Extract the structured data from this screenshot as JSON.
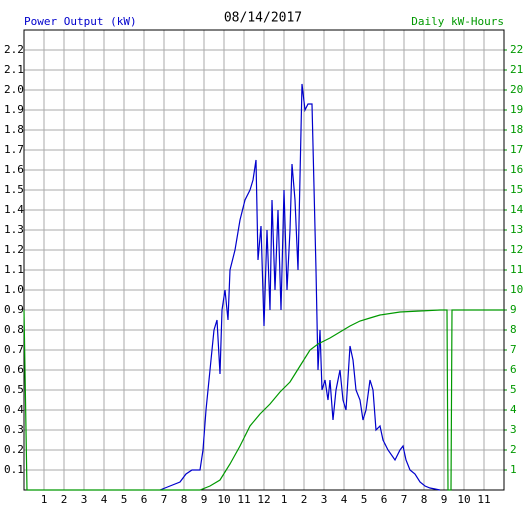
{
  "chart_data": {
    "type": "line",
    "title": "08/14/2017",
    "ylabel": "Power Output (kW)",
    "y2label": "Daily kW-Hours",
    "grid": true,
    "xlim": [
      0,
      24
    ],
    "xticks": [
      1,
      2,
      3,
      4,
      5,
      6,
      7,
      8,
      9,
      10,
      11,
      12,
      {
        "value": 13,
        "label": "1"
      },
      {
        "value": 14,
        "label": "2"
      },
      {
        "value": 15,
        "label": "3"
      },
      {
        "value": 16,
        "label": "4"
      },
      {
        "value": 17,
        "label": "5"
      },
      {
        "value": 18,
        "label": "6"
      },
      {
        "value": 19,
        "label": "7"
      },
      {
        "value": 20,
        "label": "8"
      },
      {
        "value": 21,
        "label": "9"
      },
      {
        "value": 22,
        "label": "10"
      },
      {
        "value": 23,
        "label": "11"
      }
    ],
    "ylim": [
      0,
      2.3
    ],
    "yticks": [
      0.1,
      0.2,
      0.3,
      0.4,
      0.5,
      0.6,
      0.7,
      0.8,
      0.9,
      {
        "value": 1,
        "label": "1.0"
      },
      1.1,
      1.2,
      1.3,
      1.4,
      1.5,
      1.6,
      1.7,
      1.8,
      1.9,
      {
        "value": 2,
        "label": "2.0"
      },
      2.1,
      2.2
    ],
    "y2lim": [
      0,
      23
    ],
    "y2ticks": [
      1,
      2,
      3,
      4,
      5,
      6,
      7,
      8,
      9,
      10,
      11,
      12,
      13,
      14,
      15,
      16,
      17,
      18,
      19,
      20,
      21,
      22
    ],
    "series": [
      {
        "color": "#0000cc",
        "x": [
          6.8,
          7.3,
          7.8,
          8.1,
          8.4,
          8.8,
          8.95,
          9.1,
          9.3,
          9.5,
          9.65,
          9.8,
          9.9,
          10.05,
          10.2,
          10.3,
          10.55,
          10.8,
          11.05,
          11.3,
          11.45,
          11.6,
          11.7,
          11.85,
          12,
          12.15,
          12.3,
          12.4,
          12.55,
          12.7,
          12.85,
          13,
          13.15,
          13.3,
          13.4,
          13.55,
          13.7,
          13.9,
          14.05,
          14.2,
          14.4,
          14.6,
          14.7,
          14.8,
          14.9,
          15.05,
          15.2,
          15.3,
          15.45,
          15.6,
          15.8,
          15.95,
          16.1,
          16.3,
          16.45,
          16.6,
          16.8,
          16.95,
          17.1,
          17.3,
          17.45,
          17.6,
          17.8,
          17.95,
          18.2,
          18.55,
          18.8,
          18.95,
          19.1,
          19.3,
          19.55,
          19.8,
          20.05,
          20.3,
          20.8
        ],
        "values": [
          0,
          0.02,
          0.04,
          0.08,
          0.1,
          0.1,
          0.2,
          0.4,
          0.6,
          0.8,
          0.85,
          0.58,
          0.9,
          1.0,
          0.85,
          1.1,
          1.2,
          1.35,
          1.45,
          1.5,
          1.55,
          1.65,
          1.15,
          1.32,
          0.82,
          1.3,
          0.9,
          1.45,
          1.0,
          1.4,
          0.9,
          1.5,
          1.0,
          1.3,
          1.63,
          1.45,
          1.1,
          2.03,
          1.9,
          1.93,
          1.93,
          1.1,
          0.6,
          0.8,
          0.5,
          0.55,
          0.45,
          0.55,
          0.35,
          0.5,
          0.6,
          0.45,
          0.4,
          0.72,
          0.65,
          0.5,
          0.45,
          0.35,
          0.4,
          0.55,
          0.5,
          0.3,
          0.32,
          0.25,
          0.2,
          0.15,
          0.2,
          0.22,
          0.15,
          0.1,
          0.08,
          0.04,
          0.02,
          0.01,
          0
        ]
      },
      {
        "color": "#009900",
        "axis": "y2",
        "x": [
          0,
          0.15,
          8.8,
          9.3,
          9.8,
          10.3,
          10.8,
          11.3,
          11.8,
          12.3,
          12.8,
          13.3,
          13.8,
          14.3,
          14.7,
          15.3,
          15.8,
          16.3,
          16.8,
          17.3,
          17.8,
          18.8,
          19.8,
          20.8,
          21.15,
          21.2,
          21.35,
          21.4,
          24
        ],
        "values": [
          9,
          0,
          0,
          0.2,
          0.5,
          1.3,
          2.2,
          3.2,
          3.8,
          4.3,
          4.9,
          5.4,
          6.2,
          7.0,
          7.3,
          7.6,
          7.9,
          8.2,
          8.45,
          8.6,
          8.75,
          8.9,
          8.95,
          9,
          9,
          0,
          0,
          9,
          9
        ]
      }
    ]
  }
}
